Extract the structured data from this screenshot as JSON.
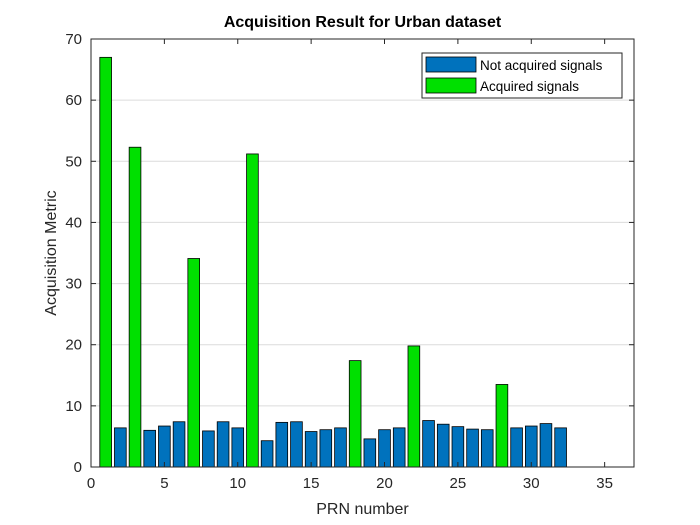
{
  "chart_data": {
    "type": "bar",
    "title": "Acquisition Result for Urban dataset",
    "xlabel": "PRN number",
    "ylabel": "Acquisition Metric",
    "xlim": [
      0,
      37
    ],
    "ylim": [
      0,
      70
    ],
    "xticks": [
      0,
      5,
      10,
      15,
      20,
      25,
      30,
      35
    ],
    "yticks": [
      0,
      10,
      20,
      30,
      40,
      50,
      60,
      70
    ],
    "grid": "horizontal",
    "legend_position": "top-right",
    "series": [
      {
        "name": "Not acquired signals",
        "color": "#0072BD",
        "x": [
          2,
          4,
          5,
          6,
          8,
          9,
          10,
          12,
          13,
          14,
          15,
          16,
          17,
          19,
          20,
          21,
          23,
          24,
          25,
          26,
          27,
          29,
          30,
          31,
          32
        ],
        "values": [
          6.4,
          6.0,
          6.7,
          7.4,
          5.9,
          7.4,
          6.4,
          4.3,
          7.3,
          7.4,
          5.8,
          6.1,
          6.4,
          4.6,
          6.1,
          6.4,
          7.6,
          7.0,
          6.6,
          6.2,
          6.1,
          6.4,
          6.7,
          7.1,
          6.4
        ]
      },
      {
        "name": "Acquired signals",
        "color": "#00E000",
        "x": [
          1,
          3,
          7,
          11,
          18,
          22,
          28
        ],
        "values": [
          67.0,
          52.3,
          34.1,
          51.2,
          17.4,
          19.8,
          13.5
        ]
      }
    ]
  }
}
